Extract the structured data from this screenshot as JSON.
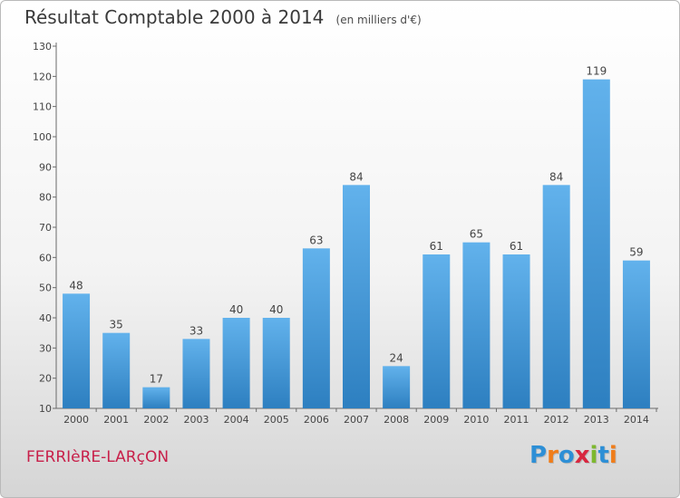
{
  "title": "Résultat Comptable 2000 à 2014",
  "subtitle": "(en milliers d'€)",
  "location": "FERRIèRE-LARçON",
  "logo": {
    "letters": [
      "P",
      "r",
      "o",
      "x",
      "i",
      "t",
      "i"
    ],
    "colors": [
      "#2d8fd6",
      "#f07d1a",
      "#2d8fd6",
      "#d8273f",
      "#7db82e",
      "#2d8fd6",
      "#f07d1a"
    ]
  },
  "colors": {
    "bar_top": "#62b2ec",
    "bar_bottom": "#2d7fc0",
    "location": "#c8204a"
  },
  "chart_data": {
    "type": "bar",
    "categories": [
      "2000",
      "2001",
      "2002",
      "2003",
      "2004",
      "2005",
      "2006",
      "2007",
      "2008",
      "2009",
      "2010",
      "2011",
      "2012",
      "2013",
      "2014"
    ],
    "values": [
      48,
      35,
      17,
      33,
      40,
      40,
      63,
      84,
      24,
      61,
      65,
      61,
      84,
      119,
      59
    ],
    "ylim": [
      10,
      130
    ],
    "yticks": [
      10,
      20,
      30,
      40,
      50,
      60,
      70,
      80,
      90,
      100,
      110,
      120,
      130
    ],
    "grid": false,
    "data_labels": true
  }
}
